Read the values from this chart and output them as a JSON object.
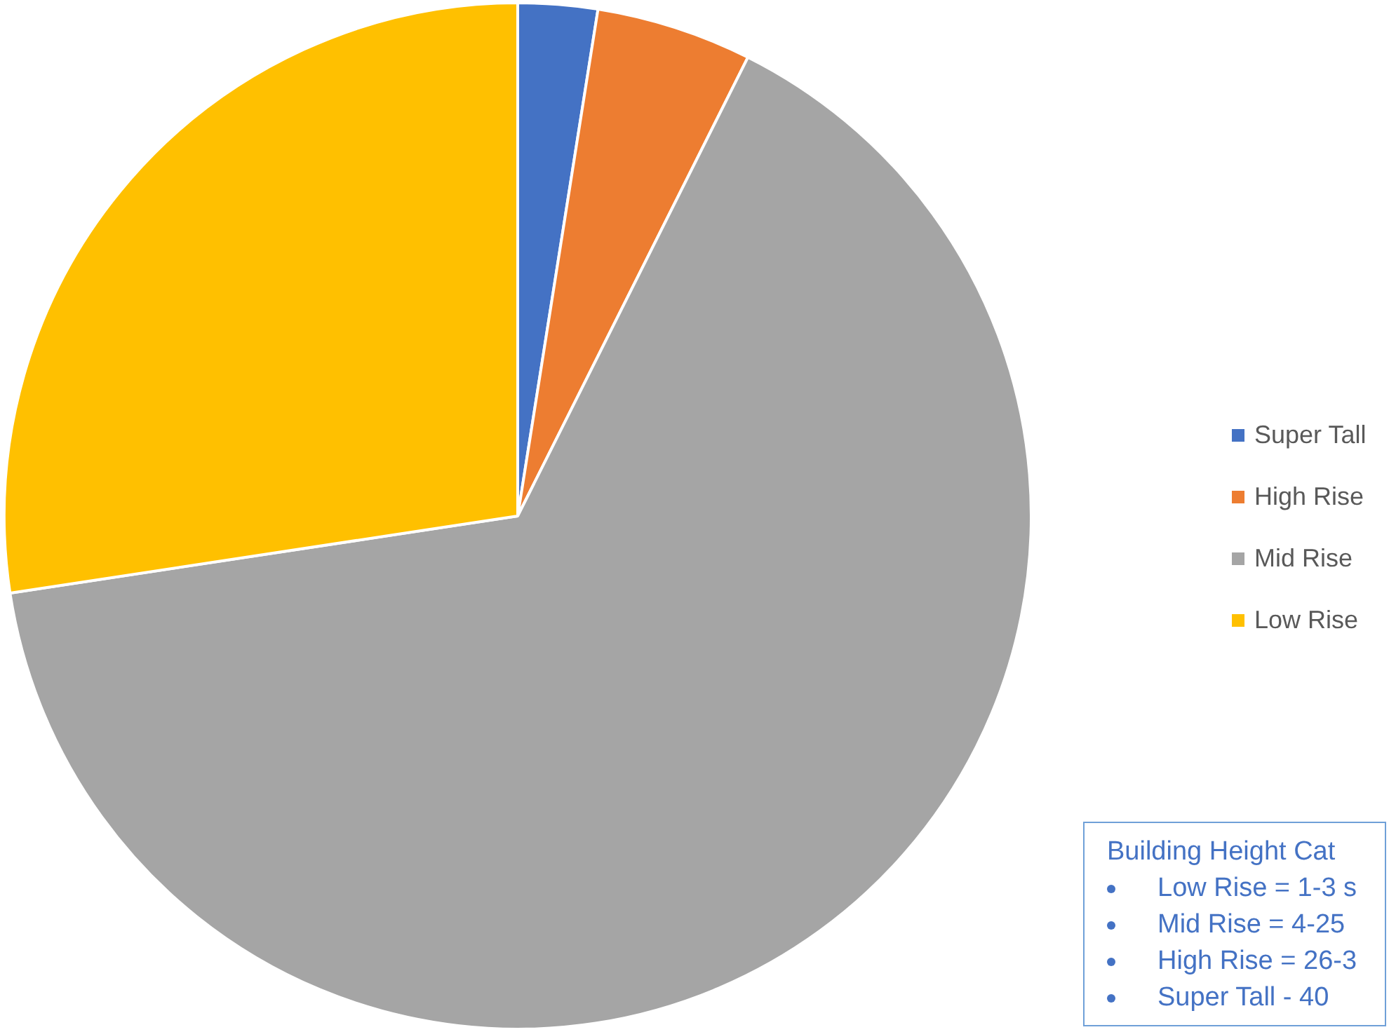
{
  "chart_data": {
    "type": "pie",
    "categories": [
      "Super Tall",
      "High Rise",
      "Mid Rise",
      "Low Rise"
    ],
    "values": [
      2.5,
      4.9,
      65.2,
      27.4
    ],
    "colors": [
      "#4472c4",
      "#ed7d31",
      "#a5a5a5",
      "#ffc000"
    ],
    "legend": "right",
    "annotations": [
      "Building Height Cat",
      "Low Rise = 1-3 s",
      "Mid Rise = 4-25",
      "High Rise = 26-3",
      "Super Tall - 40"
    ]
  }
}
